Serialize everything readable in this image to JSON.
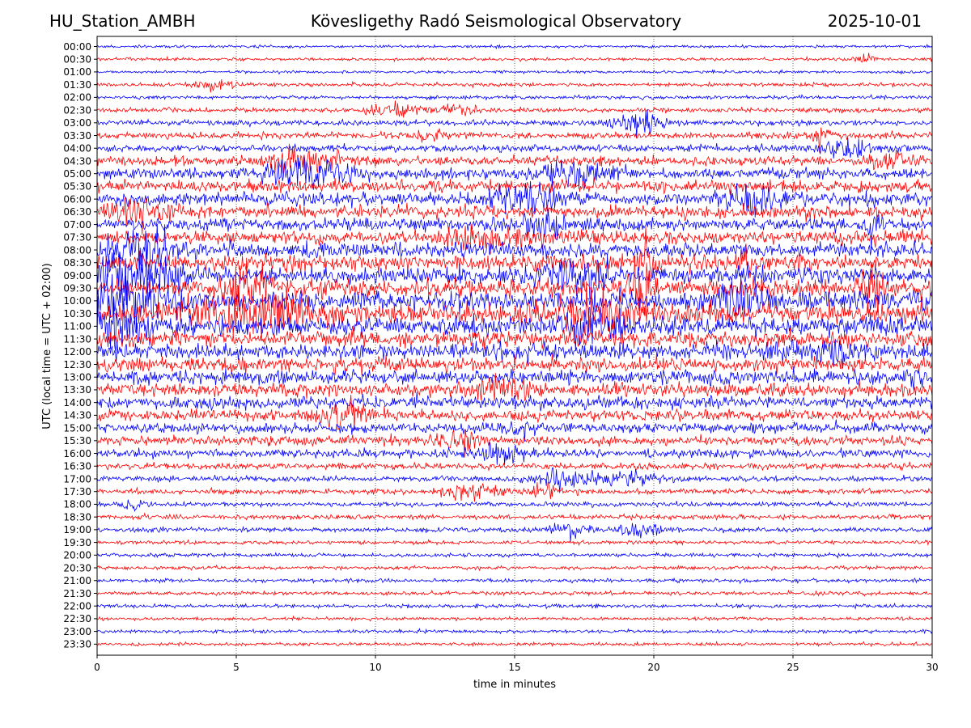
{
  "header": {
    "station": "HU_Station_AMBH",
    "title": "Kövesligethy Radó Seismological Observatory",
    "date": "2025-10-01"
  },
  "chart_data": {
    "type": "line",
    "title": "Kövesligethy Radó Seismological Observatory",
    "xlabel": "time in minutes",
    "ylabel": "UTC (local time = UTC + 02:00)",
    "xlim": [
      0,
      30
    ],
    "x_ticks": [
      0,
      5,
      10,
      15,
      20,
      25,
      30
    ],
    "x_tick_labels": [
      "0",
      "5",
      "10",
      "15",
      "20",
      "25",
      "30"
    ],
    "vertical_gridlines_at": [
      5,
      10,
      15,
      20,
      25
    ],
    "row_labels": [
      "00:00",
      "00:30",
      "01:00",
      "01:30",
      "02:00",
      "02:30",
      "03:00",
      "03:30",
      "04:00",
      "04:30",
      "05:00",
      "05:30",
      "06:00",
      "06:30",
      "07:00",
      "07:30",
      "08:00",
      "08:30",
      "09:00",
      "09:30",
      "10:00",
      "10:30",
      "11:00",
      "11:30",
      "12:00",
      "12:30",
      "13:00",
      "13:30",
      "14:00",
      "14:30",
      "15:00",
      "15:30",
      "16:00",
      "16:30",
      "17:00",
      "17:30",
      "18:00",
      "18:30",
      "19:00",
      "19:30",
      "20:00",
      "20:30",
      "21:00",
      "21:30",
      "22:00",
      "22:30",
      "23:00",
      "23:30"
    ],
    "trace_colors": [
      "#0000ff",
      "#ff0000"
    ],
    "base_noise_by_row": [
      1.5,
      1.6,
      1.5,
      2.0,
      2.0,
      2.5,
      3.0,
      3.5,
      4.0,
      5.0,
      6.0,
      6.5,
      7.0,
      7.0,
      7.0,
      7.5,
      8.0,
      8.5,
      9.0,
      9.5,
      10.5,
      11.0,
      10.0,
      9.0,
      8.5,
      8.0,
      7.5,
      7.0,
      6.5,
      6.0,
      5.5,
      5.0,
      4.5,
      3.5,
      3.0,
      2.8,
      2.5,
      2.5,
      2.5,
      2.0,
      2.0,
      2.0,
      2.0,
      2.0,
      2.0,
      1.8,
      1.8,
      1.8
    ],
    "bursts": [
      {
        "row": 1,
        "minute": 27.5,
        "amplitude": 5,
        "width_min": 0.6
      },
      {
        "row": 3,
        "minute": 4.2,
        "amplitude": 4,
        "width_min": 1.2
      },
      {
        "row": 5,
        "minute": 10.8,
        "amplitude": 7,
        "width_min": 1.5
      },
      {
        "row": 5,
        "minute": 13.0,
        "amplitude": 5,
        "width_min": 1.2
      },
      {
        "row": 6,
        "minute": 19.5,
        "amplitude": 12,
        "width_min": 1.2
      },
      {
        "row": 7,
        "minute": 12.0,
        "amplitude": 6,
        "width_min": 1.0
      },
      {
        "row": 7,
        "minute": 26.0,
        "amplitude": 12,
        "width_min": 0.4
      },
      {
        "row": 8,
        "minute": 27.0,
        "amplitude": 9,
        "width_min": 1.5
      },
      {
        "row": 9,
        "minute": 7.5,
        "amplitude": 12,
        "width_min": 2.0
      },
      {
        "row": 9,
        "minute": 28.5,
        "amplitude": 9,
        "width_min": 1.0
      },
      {
        "row": 10,
        "minute": 7.5,
        "amplitude": 14,
        "width_min": 2.0
      },
      {
        "row": 10,
        "minute": 17.0,
        "amplitude": 10,
        "width_min": 2.0
      },
      {
        "row": 12,
        "minute": 15.5,
        "amplitude": 13,
        "width_min": 2.0
      },
      {
        "row": 12,
        "minute": 23.5,
        "amplitude": 12,
        "width_min": 1.5
      },
      {
        "row": 13,
        "minute": 1.5,
        "amplitude": 16,
        "width_min": 1.5
      },
      {
        "row": 14,
        "minute": 16.0,
        "amplitude": 10,
        "width_min": 1.5
      },
      {
        "row": 14,
        "minute": 27.8,
        "amplitude": 26,
        "width_min": 0.3
      },
      {
        "row": 15,
        "minute": 14.0,
        "amplitude": 10,
        "width_min": 2.0
      },
      {
        "row": 16,
        "minute": 1.7,
        "amplitude": 22,
        "width_min": 1.5
      },
      {
        "row": 17,
        "minute": 19.8,
        "amplitude": 25,
        "width_min": 0.4
      },
      {
        "row": 17,
        "minute": 23.2,
        "amplitude": 20,
        "width_min": 0.3
      },
      {
        "row": 18,
        "minute": 1.5,
        "amplitude": 28,
        "width_min": 2.0
      },
      {
        "row": 18,
        "minute": 17.5,
        "amplitude": 20,
        "width_min": 1.5
      },
      {
        "row": 19,
        "minute": 5.5,
        "amplitude": 22,
        "width_min": 1.0
      },
      {
        "row": 19,
        "minute": 19.5,
        "amplitude": 30,
        "width_min": 0.6
      },
      {
        "row": 19,
        "minute": 27.8,
        "amplitude": 28,
        "width_min": 0.6
      },
      {
        "row": 20,
        "minute": 1.0,
        "amplitude": 26,
        "width_min": 2.5
      },
      {
        "row": 20,
        "minute": 23.0,
        "amplitude": 22,
        "width_min": 1.0
      },
      {
        "row": 21,
        "minute": 5.5,
        "amplitude": 20,
        "width_min": 3.0
      },
      {
        "row": 21,
        "minute": 17.8,
        "amplitude": 24,
        "width_min": 2.0
      },
      {
        "row": 22,
        "minute": 0.5,
        "amplitude": 20,
        "width_min": 2.0
      },
      {
        "row": 22,
        "minute": 17.8,
        "amplitude": 18,
        "width_min": 1.5
      },
      {
        "row": 24,
        "minute": 26.0,
        "amplitude": 12,
        "width_min": 2.0
      },
      {
        "row": 26,
        "minute": 29.5,
        "amplitude": 12,
        "width_min": 0.8
      },
      {
        "row": 27,
        "minute": 14.5,
        "amplitude": 12,
        "width_min": 1.5
      },
      {
        "row": 29,
        "minute": 9.0,
        "amplitude": 12,
        "width_min": 1.5
      },
      {
        "row": 30,
        "minute": 15.2,
        "amplitude": 7,
        "width_min": 0.8
      },
      {
        "row": 31,
        "minute": 13.0,
        "amplitude": 8,
        "width_min": 1.2
      },
      {
        "row": 32,
        "minute": 14.5,
        "amplitude": 9,
        "width_min": 1.5
      },
      {
        "row": 34,
        "minute": 16.5,
        "amplitude": 9,
        "width_min": 1.2
      },
      {
        "row": 34,
        "minute": 19.0,
        "amplitude": 7,
        "width_min": 2.5
      },
      {
        "row": 35,
        "minute": 13.5,
        "amplitude": 8,
        "width_min": 1.5
      },
      {
        "row": 35,
        "minute": 16.0,
        "amplitude": 7,
        "width_min": 0.8
      },
      {
        "row": 36,
        "minute": 1.2,
        "amplitude": 5,
        "width_min": 0.6
      },
      {
        "row": 38,
        "minute": 17.0,
        "amplitude": 9,
        "width_min": 1.0
      },
      {
        "row": 38,
        "minute": 19.5,
        "amplitude": 7,
        "width_min": 1.2
      }
    ]
  }
}
